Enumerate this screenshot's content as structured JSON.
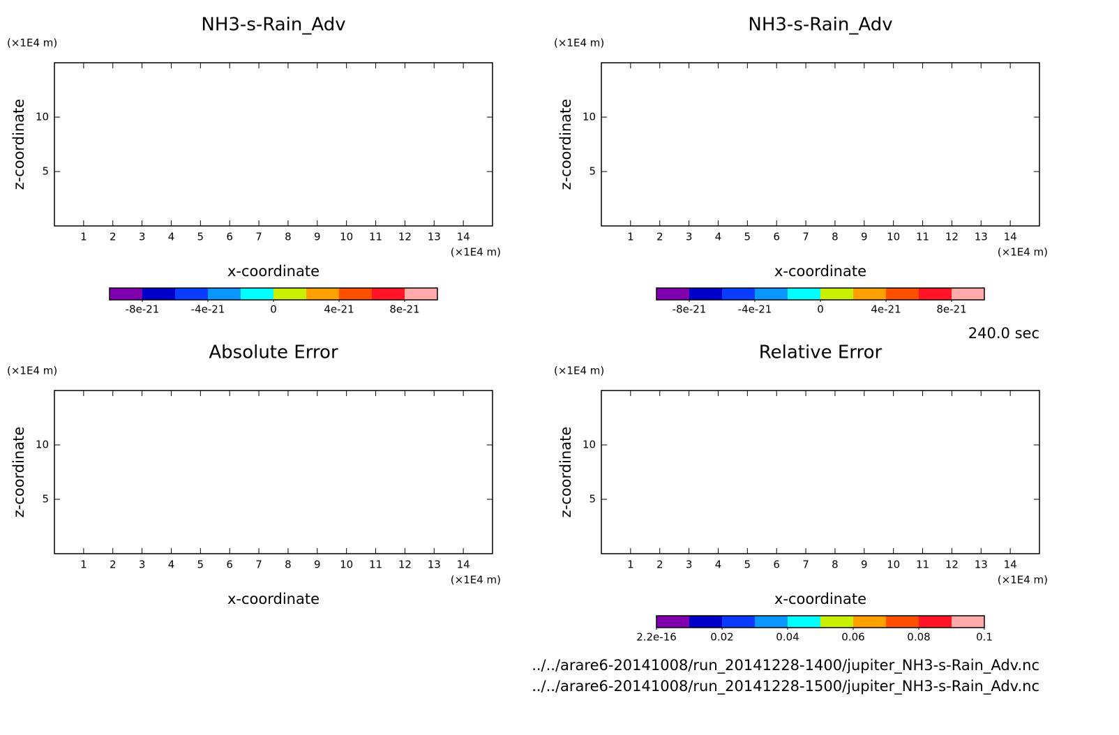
{
  "chart_data": [
    {
      "type": "contour",
      "title": "NH3-s-Rain_Adv",
      "xlabel": "x-coordinate",
      "ylabel": "z-coordinate",
      "x_unit": "(×1E4 m)",
      "y_unit": "(×1E4 m)",
      "xlim": [
        0,
        15
      ],
      "ylim": [
        0,
        15
      ],
      "xticks": [
        1,
        2,
        3,
        4,
        5,
        6,
        7,
        8,
        9,
        10,
        11,
        12,
        13,
        14
      ],
      "yticks": [
        5,
        10
      ],
      "colorbar": {
        "colors": [
          "#8000b0",
          "#0000c8",
          "#0a3cff",
          "#0a96ff",
          "#00ffff",
          "#c8f000",
          "#ffa000",
          "#ff5000",
          "#ff1428",
          "#ffaaaa"
        ],
        "lim": [
          -1e-20,
          1e-20
        ],
        "ticks": [
          -8e-21,
          -4e-21,
          0,
          4e-21,
          8e-21
        ]
      }
    },
    {
      "type": "contour",
      "title": "NH3-s-Rain_Adv",
      "xlabel": "x-coordinate",
      "ylabel": "z-coordinate",
      "x_unit": "(×1E4 m)",
      "y_unit": "(×1E4 m)",
      "xlim": [
        0,
        15
      ],
      "ylim": [
        0,
        15
      ],
      "xticks": [
        1,
        2,
        3,
        4,
        5,
        6,
        7,
        8,
        9,
        10,
        11,
        12,
        13,
        14
      ],
      "yticks": [
        5,
        10
      ],
      "colorbar": {
        "colors": [
          "#8000b0",
          "#0000c8",
          "#0a3cff",
          "#0a96ff",
          "#00ffff",
          "#c8f000",
          "#ffa000",
          "#ff5000",
          "#ff1428",
          "#ffaaaa"
        ],
        "lim": [
          -1e-20,
          1e-20
        ],
        "ticks": [
          -8e-21,
          -4e-21,
          0,
          4e-21,
          8e-21
        ]
      }
    },
    {
      "type": "contour",
      "title": "Absolute Error",
      "xlabel": "x-coordinate",
      "ylabel": "z-coordinate",
      "x_unit": "(×1E4 m)",
      "y_unit": "(×1E4 m)",
      "xlim": [
        0,
        15
      ],
      "ylim": [
        0,
        15
      ],
      "xticks": [
        1,
        2,
        3,
        4,
        5,
        6,
        7,
        8,
        9,
        10,
        11,
        12,
        13,
        14
      ],
      "yticks": [
        5,
        10
      ]
    },
    {
      "type": "contour",
      "title": "Relative Error",
      "xlabel": "x-coordinate",
      "ylabel": "z-coordinate",
      "x_unit": "(×1E4 m)",
      "y_unit": "(×1E4 m)",
      "xlim": [
        0,
        15
      ],
      "ylim": [
        0,
        15
      ],
      "xticks": [
        1,
        2,
        3,
        4,
        5,
        6,
        7,
        8,
        9,
        10,
        11,
        12,
        13,
        14
      ],
      "yticks": [
        5,
        10
      ],
      "colorbar": {
        "colors": [
          "#8000b0",
          "#0000c8",
          "#0a3cff",
          "#0a96ff",
          "#00ffff",
          "#c8f000",
          "#ffa000",
          "#ff5000",
          "#ff1428",
          "#ffaaaa"
        ],
        "lim": [
          2.2e-16,
          0.1
        ],
        "ticks": [
          2.2e-16,
          0.02,
          0.04,
          0.06,
          0.08,
          0.1
        ]
      }
    }
  ],
  "time_label": "240.0 sec",
  "files": [
    "../../arare6-20141008/run_20141228-1400/jupiter_NH3-s-Rain_Adv.nc",
    "../../arare6-20141008/run_20141228-1500/jupiter_NH3-s-Rain_Adv.nc"
  ]
}
